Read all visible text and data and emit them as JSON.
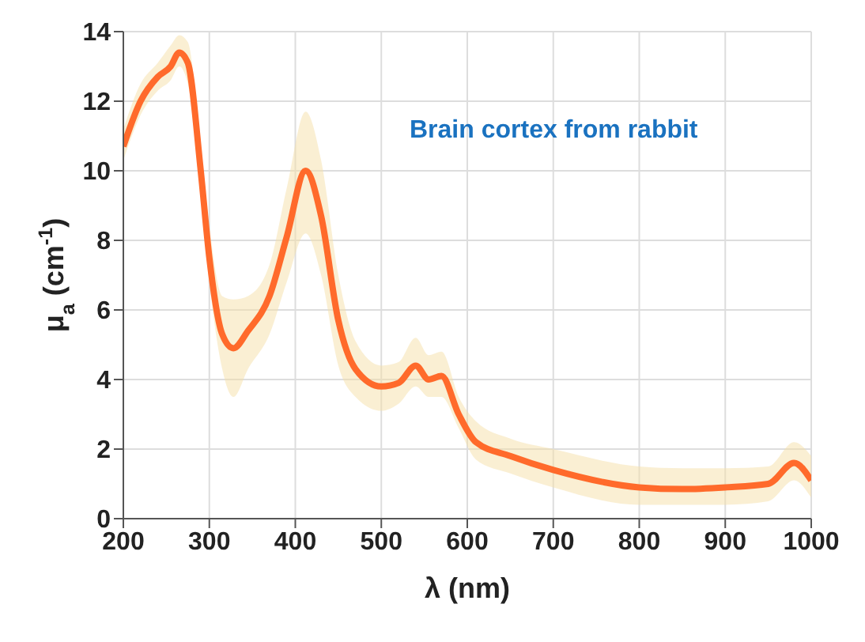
{
  "chart_data": {
    "type": "line",
    "xlabel": "λ (nm)",
    "ylabel": "μ$_{a}$ (cm$^{-1}$)",
    "annotations": [
      "Brain cortex from rabbit"
    ],
    "x": [
      200,
      220,
      240,
      255,
      265,
      275,
      290,
      300,
      315,
      328,
      345,
      370,
      390,
      412,
      430,
      450,
      470,
      500,
      520,
      540,
      555,
      570,
      590,
      610,
      650,
      700,
      800,
      850,
      900,
      950,
      980,
      1000
    ],
    "series": [
      {
        "color": "#ff6a2b",
        "values": [
          10.7,
          12.0,
          12.7,
          13.0,
          13.4,
          13.1,
          10.0,
          7.5,
          5.3,
          4.9,
          5.4,
          6.4,
          8.1,
          10.0,
          8.7,
          5.7,
          4.3,
          3.8,
          3.9,
          4.4,
          4.0,
          4.1,
          3.0,
          2.2,
          1.8,
          1.4,
          0.9,
          0.85,
          0.9,
          1.0,
          1.6,
          1.1
        ],
        "lower": [
          10.3,
          11.6,
          12.3,
          12.6,
          13.0,
          12.5,
          9.3,
          6.8,
          4.3,
          3.5,
          4.3,
          5.3,
          6.8,
          8.2,
          7.0,
          4.4,
          3.5,
          3.1,
          3.3,
          3.8,
          3.5,
          3.5,
          2.6,
          1.7,
          1.3,
          0.9,
          0.4,
          0.4,
          0.4,
          0.5,
          1.1,
          0.6
        ],
        "upper": [
          11.2,
          12.5,
          13.1,
          13.6,
          13.9,
          13.7,
          10.7,
          8.4,
          6.4,
          6.3,
          6.4,
          7.3,
          9.5,
          11.7,
          10.3,
          7.0,
          5.1,
          4.4,
          4.5,
          5.2,
          4.7,
          4.8,
          3.5,
          2.8,
          2.3,
          2.0,
          1.5,
          1.45,
          1.45,
          1.5,
          2.2,
          1.8
        ]
      }
    ],
    "xlim": [
      200,
      1000
    ],
    "xticks": [
      200,
      300,
      400,
      500,
      600,
      700,
      800,
      900,
      1000
    ],
    "ylim": [
      0,
      14
    ],
    "yticks": [
      0,
      2,
      4,
      6,
      8,
      10,
      12,
      14
    ],
    "grid": true
  }
}
